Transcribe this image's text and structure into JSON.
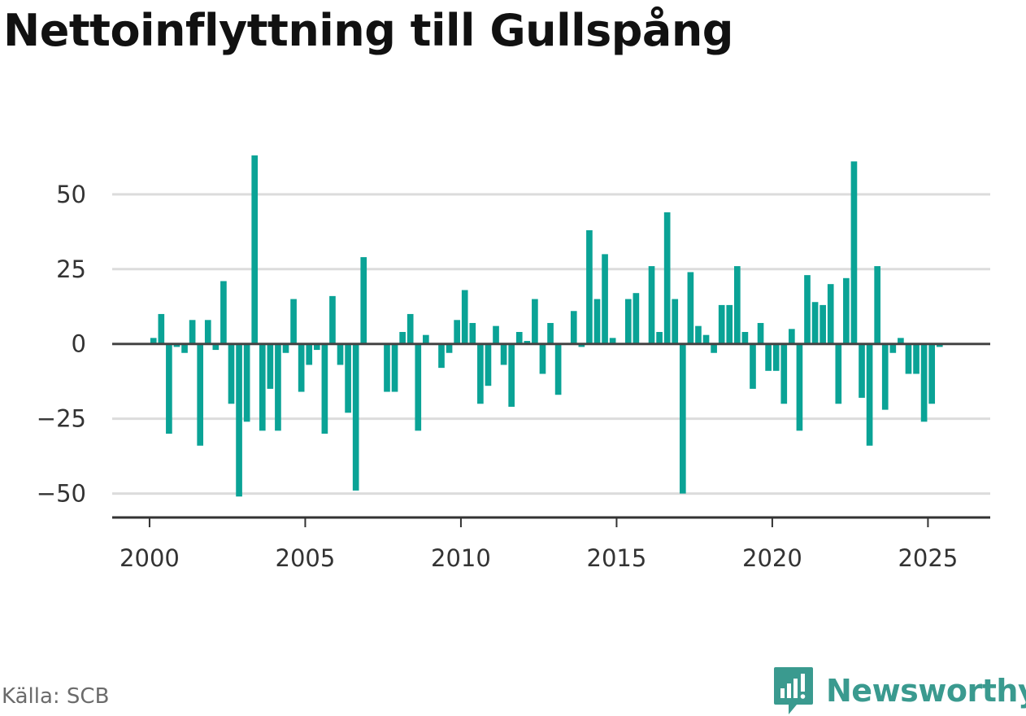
{
  "title": "Nettoinflyttning till Gullspång",
  "source": "Källa: SCB",
  "brand": {
    "name": "Newsworthy",
    "icon": "newsworthy-logo-icon"
  },
  "colors": {
    "bar": "#0aa396",
    "grid": "#dcdcdc",
    "axis": "#333333",
    "brand": "#3a9a8f"
  },
  "chart_data": {
    "type": "bar",
    "title": "Nettoinflyttning till Gullspång",
    "xlabel": "",
    "ylabel": "",
    "xlim": [
      1998.8,
      2027.0
    ],
    "ylim": [
      -58,
      66
    ],
    "yticks": [
      50,
      25,
      0,
      -25,
      -50
    ],
    "ytick_labels": [
      "50",
      "25",
      "0",
      "−25",
      "−50"
    ],
    "xticks": [
      2000,
      2005,
      2010,
      2015,
      2020,
      2025
    ],
    "xtick_labels": [
      "2000",
      "2005",
      "2010",
      "2015",
      "2020",
      "2025"
    ],
    "grid": true,
    "legend": "none",
    "series": [
      {
        "x": [
          2000.125,
          2000.375,
          2000.625,
          2000.875,
          2001.125,
          2001.375,
          2001.625,
          2001.875,
          2002.125,
          2002.375,
          2002.625,
          2002.875,
          2003.125,
          2003.375,
          2003.625,
          2003.875,
          2004.125,
          2004.375,
          2004.625,
          2004.875,
          2005.125,
          2005.375,
          2005.625,
          2005.875,
          2006.125,
          2006.375,
          2006.625,
          2006.875,
          2007.125,
          2007.375,
          2007.625,
          2007.875,
          2008.125,
          2008.375,
          2008.625,
          2008.875,
          2009.125,
          2009.375,
          2009.625,
          2009.875,
          2010.125,
          2010.375,
          2010.625,
          2010.875,
          2011.125,
          2011.375,
          2011.625,
          2011.875,
          2012.125,
          2012.375,
          2012.625,
          2012.875,
          2013.125,
          2013.375,
          2013.625,
          2013.875,
          2014.125,
          2014.375,
          2014.625,
          2014.875,
          2015.125,
          2015.375,
          2015.625,
          2015.875,
          2016.125,
          2016.375,
          2016.625,
          2016.875,
          2017.125,
          2017.375,
          2017.625,
          2017.875,
          2018.125,
          2018.375,
          2018.625,
          2018.875,
          2019.125,
          2019.375,
          2019.625,
          2019.875,
          2020.125,
          2020.375,
          2020.625,
          2020.875,
          2021.125,
          2021.375,
          2021.625,
          2021.875,
          2022.125,
          2022.375,
          2022.625,
          2022.875,
          2023.125,
          2023.375,
          2023.625,
          2023.875,
          2024.125,
          2024.375,
          2024.625,
          2024.875,
          2025.125,
          2025.375
        ],
        "values": [
          2,
          10,
          -30,
          -1,
          -3,
          8,
          -34,
          8,
          -2,
          21,
          -20,
          -51,
          -26,
          63,
          -29,
          -15,
          -29,
          -3,
          15,
          -16,
          -7,
          -2,
          -30,
          16,
          -7,
          -23,
          -49,
          29,
          0,
          0,
          -16,
          -16,
          4,
          10,
          -29,
          3,
          0,
          -8,
          -3,
          8,
          18,
          7,
          -20,
          -14,
          6,
          -7,
          -21,
          4,
          1,
          15,
          -10,
          7,
          -17,
          0,
          11,
          -1,
          38,
          15,
          30,
          2,
          0,
          15,
          17,
          0,
          26,
          4,
          44,
          15,
          -50,
          24,
          6,
          3,
          -3,
          13,
          13,
          26,
          4,
          -15,
          7,
          -9,
          -9,
          -20,
          5,
          -29,
          23,
          14,
          13,
          20,
          -20,
          22,
          61,
          -18,
          -34,
          26,
          -22,
          -3,
          2,
          -10,
          -10,
          -26,
          -20,
          -1
        ]
      }
    ]
  }
}
